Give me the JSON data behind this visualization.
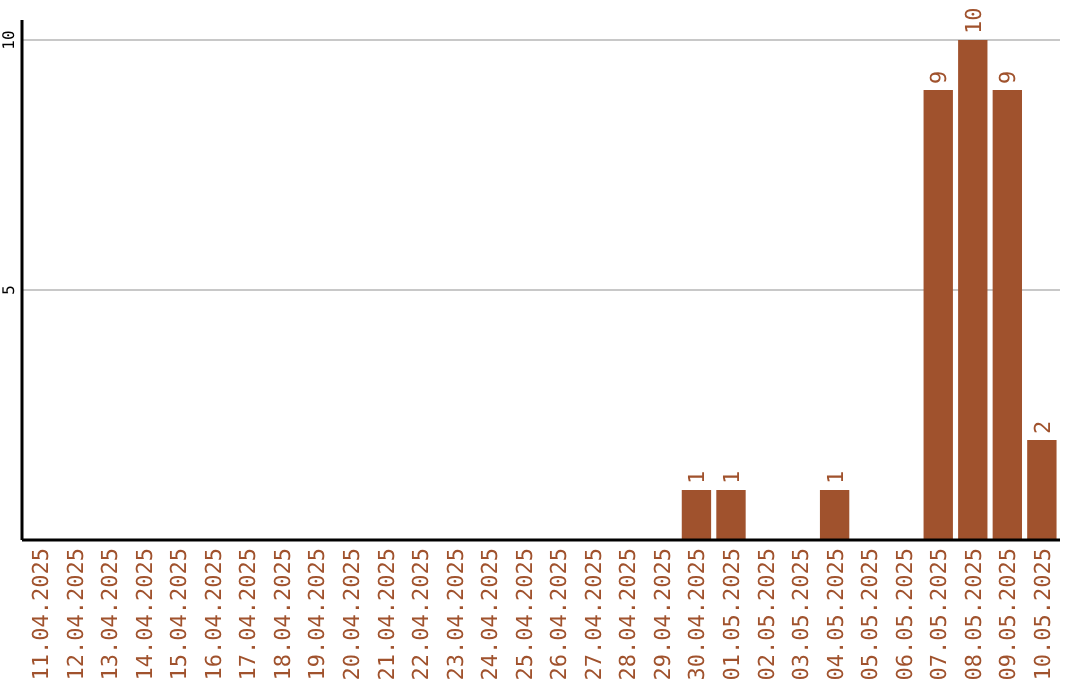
{
  "chart_data": {
    "type": "bar",
    "categories": [
      "11.04.2025",
      "12.04.2025",
      "13.04.2025",
      "14.04.2025",
      "15.04.2025",
      "16.04.2025",
      "17.04.2025",
      "18.04.2025",
      "19.04.2025",
      "20.04.2025",
      "21.04.2025",
      "22.04.2025",
      "23.04.2025",
      "24.04.2025",
      "25.04.2025",
      "26.04.2025",
      "27.04.2025",
      "28.04.2025",
      "29.04.2025",
      "30.04.2025",
      "01.05.2025",
      "02.05.2025",
      "03.05.2025",
      "04.05.2025",
      "05.05.2025",
      "06.05.2025",
      "07.05.2025",
      "08.05.2025",
      "09.05.2025",
      "10.05.2025"
    ],
    "values": [
      0,
      0,
      0,
      0,
      0,
      0,
      0,
      0,
      0,
      0,
      0,
      0,
      0,
      0,
      0,
      0,
      0,
      0,
      0,
      1,
      1,
      0,
      0,
      1,
      0,
      0,
      9,
      10,
      9,
      2
    ],
    "value_labels": [
      null,
      null,
      null,
      null,
      null,
      null,
      null,
      null,
      null,
      null,
      null,
      null,
      null,
      null,
      null,
      null,
      null,
      null,
      null,
      "1",
      "1",
      null,
      null,
      "1",
      null,
      null,
      "9",
      "10",
      "9",
      "2"
    ],
    "color": "#a0522d",
    "ylim": [
      0,
      10.4
    ],
    "yticks": [
      5,
      10
    ],
    "grid": "y"
  }
}
